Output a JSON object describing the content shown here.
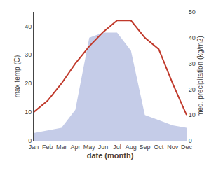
{
  "chart_data": {
    "type": "line",
    "x_label": "date (month)",
    "y_label": "max temp (C)",
    "y2_label": "med. precipitation (kg/m2)",
    "categories": [
      "Jan",
      "Feb",
      "Mar",
      "Apr",
      "May",
      "Jun",
      "Jul",
      "Aug",
      "Sep",
      "Oct",
      "Nov",
      "Dec"
    ],
    "series": [
      {
        "type": "area",
        "axis": "y2",
        "color": "#c5cce8",
        "values": [
          3,
          4,
          5,
          12,
          40,
          42,
          42,
          35,
          10,
          8,
          6,
          5
        ]
      },
      {
        "type": "line",
        "color": "#c0392b",
        "values": [
          10,
          14,
          20,
          27,
          33,
          38,
          42,
          42,
          36,
          32,
          20,
          9
        ]
      }
    ],
    "ylim": [
      0,
      45
    ],
    "yticks": [
      0,
      10,
      20,
      30,
      40
    ],
    "y2lim": [
      0,
      50
    ],
    "y2ticks": [
      0,
      10,
      20,
      30,
      40,
      50
    ],
    "grid": false
  }
}
